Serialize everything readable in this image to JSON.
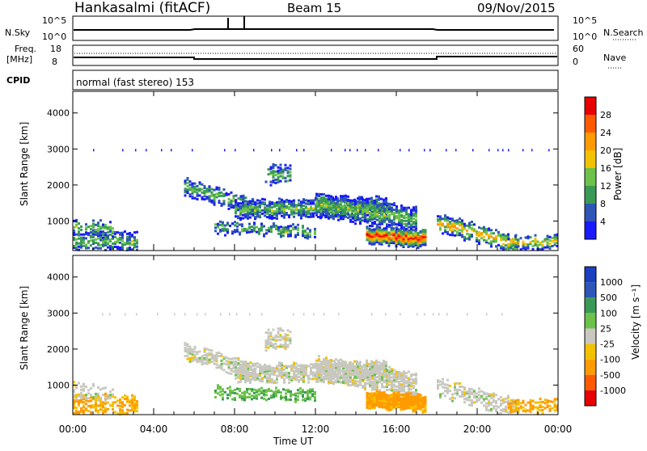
{
  "header": {
    "title": "Hankasalmi (fitACF)",
    "beam": "Beam 15",
    "date": "09/Nov/2015"
  },
  "top_panels": {
    "nsky_label": "N.Sky",
    "nsearch_label": "N.Search",
    "nsky_ticks": [
      "10^5",
      "10^0"
    ],
    "nsearch_ticks": [
      "10^5",
      "10^0"
    ],
    "freq_label_1": "Freq.",
    "freq_label_2": "[MHz]",
    "freq_ticks": [
      "18",
      "8"
    ],
    "nave_label": "Nave",
    "nave_ticks": [
      "60",
      "0"
    ],
    "cpid_label": "CPID",
    "cpid_text": "normal (fast stereo) 153"
  },
  "colors": {
    "power_scale": [
      "#1a1aff",
      "#2e55b8",
      "#3a9a55",
      "#6cc24a",
      "#f2c200",
      "#ff9a00",
      "#ff5a00",
      "#e80000"
    ],
    "velocity_scale": [
      "#e60000",
      "#ff5a00",
      "#ff9a00",
      "#f2c200",
      "#c8c8c0",
      "#6cc24a",
      "#3a9a55",
      "#2e55b8",
      "#1a3fc0"
    ]
  },
  "chart_data": [
    {
      "type": "heatmap",
      "name": "power",
      "ylabel": "Slant Range [km]",
      "xlabel": "",
      "x_ticks": [
        "00:00",
        "04:00",
        "08:00",
        "12:00",
        "16:00",
        "20:00",
        "00:00"
      ],
      "y_ticks": [
        "1000",
        "2000",
        "3000",
        "4000"
      ],
      "xlim_hours": [
        0,
        24
      ],
      "ylim_km": [
        180,
        4600
      ],
      "colorbar_label": "Power [dB]",
      "colorbar_ticks": [
        "4",
        "8",
        "12",
        "16",
        "20",
        "24",
        "28"
      ]
    },
    {
      "type": "heatmap",
      "name": "velocity",
      "ylabel": "Slant Range [km]",
      "xlabel": "Time UT",
      "x_ticks": [
        "00:00",
        "04:00",
        "08:00",
        "12:00",
        "16:00",
        "20:00",
        "00:00"
      ],
      "y_ticks": [
        "1000",
        "2000",
        "3000",
        "4000"
      ],
      "xlim_hours": [
        0,
        24
      ],
      "ylim_km": [
        180,
        4600
      ],
      "colorbar_label": "Velocity [m s⁻¹]",
      "colorbar_ticks": [
        "1000",
        "500",
        "100",
        "25",
        "-25",
        "-100",
        "-500",
        "-1000"
      ]
    }
  ]
}
